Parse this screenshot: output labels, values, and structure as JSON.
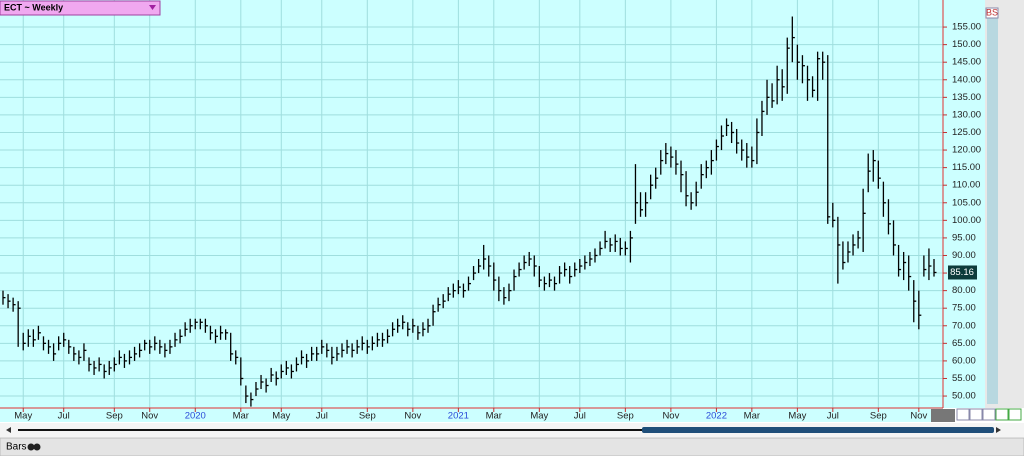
{
  "chart_data": {
    "type": "ohlc",
    "title": "ECT ~ Weekly",
    "status_label": "Bars",
    "corner_label": "BS",
    "color": "#000000",
    "grid": true,
    "xlim": [
      0,
      184
    ],
    "ylim": [
      46.6,
      162.7
    ],
    "xticks": [
      {
        "value": 4,
        "label": "May"
      },
      {
        "value": 12,
        "label": "Jul"
      },
      {
        "value": 22,
        "label": "Sep"
      },
      {
        "value": 29,
        "label": "Nov"
      },
      {
        "value": 38,
        "label": "2020"
      },
      {
        "value": 47,
        "label": "Mar"
      },
      {
        "value": 55,
        "label": "May"
      },
      {
        "value": 63,
        "label": "Jul"
      },
      {
        "value": 72,
        "label": "Sep"
      },
      {
        "value": 81,
        "label": "Nov"
      },
      {
        "value": 90,
        "label": "2021"
      },
      {
        "value": 97,
        "label": "Mar"
      },
      {
        "value": 106,
        "label": "May"
      },
      {
        "value": 114,
        "label": "Jul"
      },
      {
        "value": 123,
        "label": "Sep"
      },
      {
        "value": 132,
        "label": "Nov"
      },
      {
        "value": 141,
        "label": "2022"
      },
      {
        "value": 148,
        "label": "Mar"
      },
      {
        "value": 157,
        "label": "May"
      },
      {
        "value": 164,
        "label": "Jul"
      },
      {
        "value": 173,
        "label": "Sep"
      },
      {
        "value": 181,
        "label": "Nov"
      }
    ],
    "yticks": [
      {
        "value": 50,
        "label": "50.00"
      },
      {
        "value": 55,
        "label": "55.00"
      },
      {
        "value": 60,
        "label": "60.00"
      },
      {
        "value": 65,
        "label": "65.00"
      },
      {
        "value": 70,
        "label": "70.00"
      },
      {
        "value": 75,
        "label": "75.00"
      },
      {
        "value": 80,
        "label": "80.00"
      },
      {
        "value": 85,
        "label": "85.00"
      },
      {
        "value": 90,
        "label": "90.00"
      },
      {
        "value": 95,
        "label": "95.00"
      },
      {
        "value": 100,
        "label": "100.00"
      },
      {
        "value": 105,
        "label": "105.00"
      },
      {
        "value": 110,
        "label": "110.00"
      },
      {
        "value": 115,
        "label": "115.00"
      },
      {
        "value": 120,
        "label": "120.00"
      },
      {
        "value": 125,
        "label": "125.00"
      },
      {
        "value": 130,
        "label": "130.00"
      },
      {
        "value": 135,
        "label": "135.00"
      },
      {
        "value": 140,
        "label": "140.00"
      },
      {
        "value": 145,
        "label": "145.00"
      },
      {
        "value": 150,
        "label": "150.00"
      },
      {
        "value": 155,
        "label": "155.00"
      }
    ],
    "last_price": {
      "value": 85.16,
      "label": "85.16"
    },
    "high": [
      80,
      79,
      78,
      77,
      68,
      69,
      69,
      70,
      67,
      66,
      65,
      67,
      68,
      66,
      64,
      63,
      65,
      61,
      60,
      61,
      59,
      60,
      61,
      63,
      62,
      63,
      64,
      65,
      66,
      66,
      67,
      66,
      65,
      66,
      68,
      69,
      71,
      72,
      72,
      72,
      72,
      70,
      69,
      70,
      69,
      68,
      63,
      61,
      53,
      51,
      54,
      56,
      55,
      58,
      57,
      59,
      60,
      59,
      61,
      63,
      62,
      64,
      64,
      66,
      65,
      64,
      64,
      65,
      66,
      65,
      66,
      67,
      66,
      67,
      68,
      68,
      69,
      71,
      72,
      73,
      71,
      72,
      70,
      71,
      72,
      76,
      78,
      79,
      81,
      82,
      83,
      82,
      84,
      87,
      89,
      93,
      90,
      88,
      84,
      81,
      82,
      86,
      88,
      90,
      91,
      90,
      87,
      84,
      85,
      84,
      87,
      88,
      87,
      88,
      89,
      90,
      91,
      92,
      94,
      97,
      95,
      96,
      95,
      94,
      97,
      116,
      108,
      108,
      113,
      115,
      120,
      122,
      121,
      120,
      117,
      114,
      108,
      111,
      116,
      117,
      120,
      123,
      127,
      129,
      128,
      126,
      123,
      122,
      121,
      129,
      134,
      140,
      139,
      144,
      143,
      152,
      158,
      150,
      147,
      144,
      141,
      148,
      148,
      147,
      105,
      101,
      94,
      94,
      96,
      97,
      109,
      119,
      120,
      117,
      111,
      106,
      100,
      93,
      91,
      90,
      83,
      80,
      90,
      92,
      89
    ],
    "low": [
      76,
      75,
      74,
      64,
      63,
      64,
      64,
      66,
      63,
      62,
      60,
      63,
      64,
      62,
      60,
      59,
      60,
      57,
      56,
      57,
      55,
      56,
      57,
      59,
      58,
      59,
      60,
      61,
      63,
      62,
      63,
      62,
      61,
      62,
      64,
      65,
      67,
      68,
      69,
      69,
      68,
      66,
      65,
      66,
      66,
      60,
      59,
      53,
      48,
      47,
      50,
      52,
      51,
      54,
      53,
      55,
      56,
      55,
      57,
      59,
      58,
      60,
      60,
      62,
      61,
      59,
      60,
      61,
      62,
      61,
      62,
      63,
      62,
      63,
      64,
      64,
      65,
      67,
      68,
      69,
      67,
      68,
      66,
      67,
      68,
      70,
      74,
      75,
      77,
      78,
      79,
      78,
      80,
      83,
      85,
      86,
      84,
      80,
      77,
      76,
      77,
      80,
      84,
      86,
      87,
      84,
      81,
      80,
      81,
      80,
      82,
      84,
      82,
      84,
      85,
      86,
      87,
      88,
      90,
      92,
      91,
      91,
      90,
      90,
      88,
      99,
      101,
      101,
      106,
      109,
      113,
      116,
      115,
      113,
      108,
      104,
      103,
      104,
      109,
      112,
      113,
      117,
      120,
      124,
      122,
      119,
      117,
      115,
      115,
      116,
      124,
      130,
      132,
      133,
      134,
      136,
      145,
      140,
      139,
      134,
      135,
      134,
      140,
      99,
      98,
      82,
      86,
      88,
      90,
      92,
      91,
      108,
      111,
      109,
      101,
      96,
      90,
      84,
      83,
      80,
      71,
      69,
      84,
      83,
      84
    ],
    "close": [
      78,
      77,
      76,
      75,
      65,
      67,
      66,
      68,
      65,
      64,
      62,
      65,
      66,
      64,
      62,
      61,
      63,
      59,
      58,
      59,
      57,
      58,
      59,
      61,
      60,
      61,
      62,
      63,
      65,
      64,
      65,
      64,
      63,
      64,
      66,
      67,
      69,
      70,
      71,
      71,
      70,
      68,
      67,
      68,
      68,
      62,
      61,
      55,
      50,
      49,
      52,
      54,
      53,
      56,
      55,
      57,
      58,
      57,
      59,
      61,
      60,
      62,
      62,
      64,
      63,
      61,
      62,
      63,
      64,
      63,
      64,
      65,
      64,
      65,
      66,
      66,
      67,
      69,
      70,
      71,
      69,
      70,
      68,
      69,
      70,
      74,
      76,
      77,
      79,
      80,
      81,
      80,
      82,
      85,
      87,
      89,
      87,
      83,
      80,
      78,
      80,
      84,
      86,
      88,
      89,
      87,
      83,
      82,
      83,
      82,
      85,
      86,
      84,
      86,
      87,
      88,
      89,
      90,
      92,
      94,
      93,
      94,
      92,
      92,
      95,
      105,
      103,
      105,
      110,
      112,
      117,
      119,
      118,
      116,
      113,
      107,
      105,
      108,
      113,
      115,
      117,
      121,
      124,
      127,
      125,
      122,
      120,
      118,
      117,
      125,
      131,
      135,
      134,
      140,
      138,
      149,
      152,
      145,
      144,
      140,
      137,
      146,
      145,
      101,
      100,
      93,
      88,
      91,
      93,
      95,
      102,
      114,
      117,
      112,
      105,
      99,
      93,
      86,
      88,
      84,
      77,
      73,
      86,
      87,
      85.16
    ]
  }
}
